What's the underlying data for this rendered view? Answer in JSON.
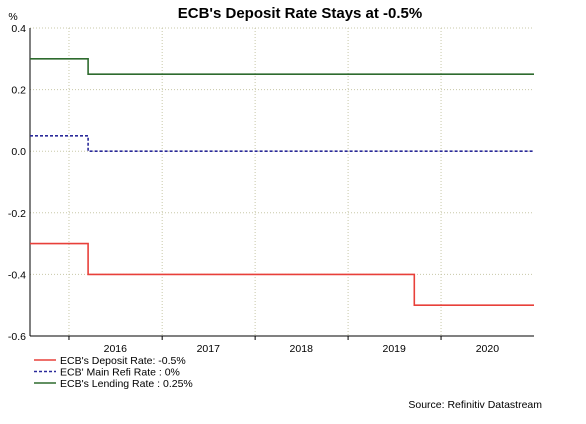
{
  "chart_data": {
    "type": "line",
    "title": "ECB's Deposit Rate Stays at -0.5%",
    "ylabel": "%",
    "xlabel": "",
    "ylim": [
      -0.6,
      0.4
    ],
    "yticks": [
      "0.4",
      "0.2",
      "0.0",
      "-0.2",
      "-0.4",
      "-0.6"
    ],
    "yticks_values": [
      0.4,
      0.2,
      0.0,
      -0.2,
      -0.4,
      -0.6
    ],
    "xlim": [
      "2015-08-01",
      "2020-12-31"
    ],
    "xticks": [
      "2016",
      "2017",
      "2018",
      "2019",
      "2020"
    ],
    "xtick_dates": [
      "2016-07-01",
      "2017-07-01",
      "2018-07-01",
      "2019-07-01",
      "2020-07-01"
    ],
    "year_boundaries": [
      "2016-01-01",
      "2017-01-01",
      "2018-01-01",
      "2019-01-01",
      "2020-01-01"
    ],
    "grid": true,
    "legend_placement": "bottom-left",
    "series": [
      {
        "name": "ECB's Deposit Rate: -0.5%",
        "color": "#e8403a",
        "style": "solid",
        "points": [
          [
            "2015-08-01",
            -0.3
          ],
          [
            "2016-03-16",
            -0.3
          ],
          [
            "2016-03-16",
            -0.4
          ],
          [
            "2019-09-18",
            -0.4
          ],
          [
            "2019-09-18",
            -0.5
          ],
          [
            "2020-12-31",
            -0.5
          ]
        ]
      },
      {
        "name": "ECB' Main Refi Rate : 0%",
        "color": "#2a2a9a",
        "style": "dashed",
        "points": [
          [
            "2015-08-01",
            0.05
          ],
          [
            "2016-03-16",
            0.05
          ],
          [
            "2016-03-16",
            0.0
          ],
          [
            "2020-12-31",
            0.0
          ]
        ]
      },
      {
        "name": "ECB's Lending Rate : 0.25%",
        "color": "#2e6b2e",
        "style": "solid",
        "points": [
          [
            "2015-08-01",
            0.3
          ],
          [
            "2016-03-16",
            0.3
          ],
          [
            "2016-03-16",
            0.25
          ],
          [
            "2020-12-31",
            0.25
          ]
        ]
      }
    ],
    "source": "Source: Refinitiv Datastream"
  }
}
